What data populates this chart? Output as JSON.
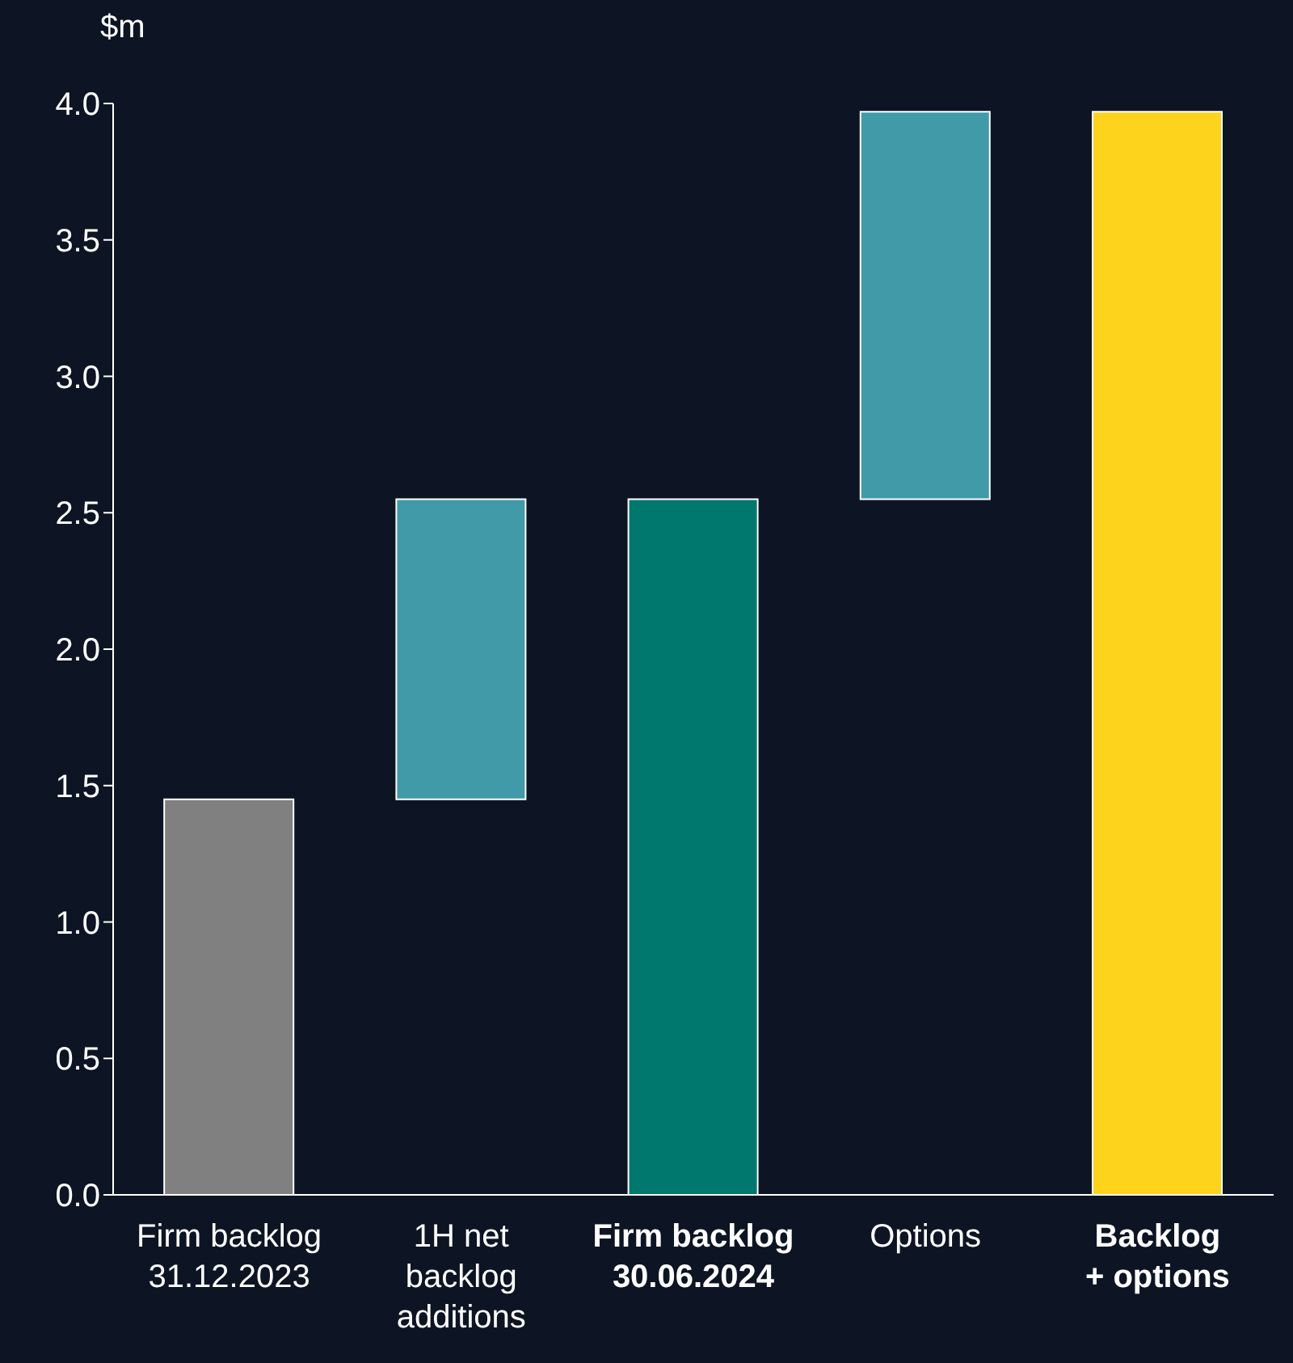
{
  "chart_data": {
    "type": "bar",
    "ylabel": "$m",
    "categories": [
      "Firm backlog\n31.12.2023",
      "1H net\nbacklog\nadditions",
      "Firm backlog\n30.06.2024",
      "Options",
      "Backlog\n+ options"
    ],
    "values": [
      1.45,
      1.1,
      2.55,
      1.42,
      3.97
    ],
    "base": [
      0,
      1.45,
      0,
      2.55,
      0
    ],
    "colors": [
      "#808080",
      "#419aa8",
      "#00786e",
      "#419aa8",
      "#fdd31c"
    ],
    "ylim": [
      0,
      4
    ],
    "yticks": [
      {
        "value": 0,
        "label": "0.0"
      },
      {
        "value": 0.5,
        "label": "0.5"
      },
      {
        "value": 1,
        "label": "1.0"
      },
      {
        "value": 1.5,
        "label": "1.5"
      },
      {
        "value": 2,
        "label": "2.0"
      },
      {
        "value": 2.5,
        "label": "2.5"
      },
      {
        "value": 3,
        "label": "3.0"
      },
      {
        "value": 3.5,
        "label": "3.5"
      },
      {
        "value": 4,
        "label": "4.0"
      }
    ],
    "grid": false
  }
}
